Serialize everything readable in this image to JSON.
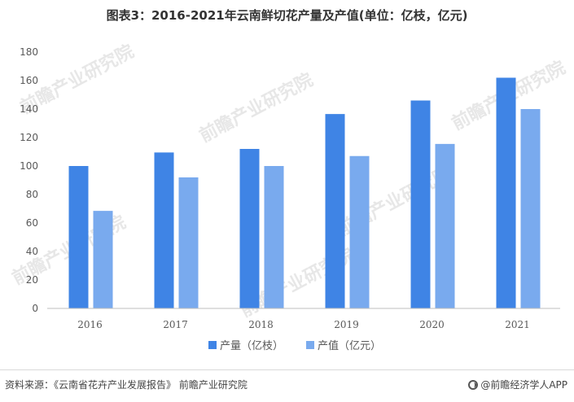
{
  "title": "图表3：2016-2021年云南鲜切花产量及产值(单位：亿枝，亿元)",
  "source": "资料来源：《云南省花卉产业发展报告》 前瞻产业研究院",
  "brand": "@前瞻经济学人APP",
  "watermark": "前瞻产业研究院",
  "colors": {
    "series1": "#3f84e5",
    "series2": "#79aaee",
    "axis": "#bfbfbf"
  },
  "chart_data": {
    "type": "bar",
    "title": "图表3：2016-2021年云南鲜切花产量及产值(单位：亿枝，亿元)",
    "categories": [
      "2016",
      "2017",
      "2018",
      "2019",
      "2020",
      "2021"
    ],
    "series": [
      {
        "name": "产量（亿枝）",
        "values": [
          100,
          109.5,
          112,
          136.5,
          146,
          162
        ]
      },
      {
        "name": "产值（亿元）",
        "values": [
          68.5,
          92,
          100,
          107,
          115.5,
          140
        ]
      }
    ],
    "yticks": [
      "0",
      "20",
      "40",
      "60",
      "80",
      "100",
      "120",
      "140",
      "160",
      "180"
    ],
    "ylim": [
      0,
      180
    ],
    "xlabel": "",
    "ylabel": "",
    "grid": false,
    "legend": "bottom-center"
  }
}
